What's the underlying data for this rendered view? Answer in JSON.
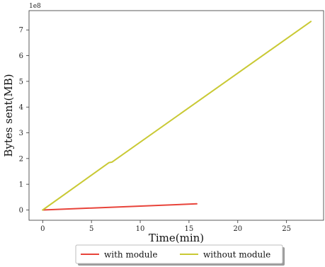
{
  "chart_data": {
    "type": "line",
    "xlabel": "Time(min)",
    "ylabel": "Bytes sent(MB)",
    "y_offset_label": "1e8",
    "xlim": [
      -1.4,
      28.8
    ],
    "ylim": [
      -0.4,
      7.75
    ],
    "x_ticks": [
      0,
      5,
      10,
      15,
      20,
      25
    ],
    "y_ticks": [
      0,
      1,
      2,
      3,
      4,
      5,
      6,
      7
    ],
    "grid": false,
    "legend_position": "bottom-center",
    "series": [
      {
        "name": "with module",
        "color": "#e8433a",
        "x": [
          0,
          15.8
        ],
        "y": [
          0,
          0.24
        ]
      },
      {
        "name": "without module",
        "color": "#c9c934",
        "x": [
          0,
          6.8,
          7.1,
          27.5
        ],
        "y": [
          0,
          1.84,
          1.86,
          7.33
        ]
      }
    ]
  }
}
